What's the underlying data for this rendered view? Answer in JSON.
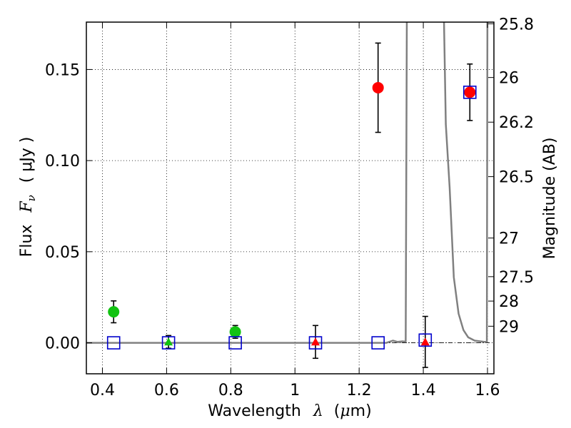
{
  "chart_data": {
    "type": "scatter",
    "xlabel": "Wavelength",
    "xlabel_symbol": "λ",
    "xlabel_unit_open": "(",
    "xlabel_unit_mu": "μ",
    "xlabel_unit_rest": "m)",
    "ylabel": "Flux",
    "ylabel_symbol": "F",
    "ylabel_symbol_sub": "ν",
    "ylabel_unit": "( μJy )",
    "y2label": "Magnitude (AB)",
    "xlim": [
      0.35,
      1.62
    ],
    "ylim": [
      -0.017,
      0.176
    ],
    "grid": true,
    "x_ticks": [
      {
        "value": 0.4,
        "label": "0.4"
      },
      {
        "value": 0.6,
        "label": "0.6"
      },
      {
        "value": 0.8,
        "label": "0.8"
      },
      {
        "value": 1.0,
        "label": "1"
      },
      {
        "value": 1.2,
        "label": "1.2"
      },
      {
        "value": 1.4,
        "label": "1.4"
      },
      {
        "value": 1.6,
        "label": "1.6"
      }
    ],
    "y_ticks": [
      {
        "value": 0.0,
        "label": "0.00"
      },
      {
        "value": 0.05,
        "label": "0.05"
      },
      {
        "value": 0.1,
        "label": "0.10"
      },
      {
        "value": 0.15,
        "label": "0.15"
      }
    ],
    "y2_ticks": [
      {
        "flux": 0.1751,
        "label": "25.8"
      },
      {
        "flux": 0.1456,
        "label": "26"
      },
      {
        "flux": 0.1211,
        "label": "26.2"
      },
      {
        "flux": 0.0912,
        "label": "26.5"
      },
      {
        "flux": 0.0575,
        "label": "27"
      },
      {
        "flux": 0.0363,
        "label": "27.5"
      },
      {
        "flux": 0.0229,
        "label": "28"
      },
      {
        "flux": 0.0091,
        "label": "29"
      }
    ],
    "series": [
      {
        "name": "green circles",
        "marker": "circle",
        "color": "#11c211",
        "points": [
          {
            "x": 0.435,
            "y": 0.017,
            "err": 0.006
          },
          {
            "x": 0.814,
            "y": 0.006,
            "err": 0.0035
          }
        ]
      },
      {
        "name": "green triangles",
        "marker": "triangle",
        "color": "#11c211",
        "points": [
          {
            "x": 0.606,
            "y": 0.0005,
            "err": 0.0035
          }
        ]
      },
      {
        "name": "red circles",
        "marker": "circle",
        "color": "#ff0000",
        "points": [
          {
            "x": 1.259,
            "y": 0.14,
            "err": 0.0245
          },
          {
            "x": 1.545,
            "y": 0.1375,
            "err": 0.0155
          }
        ]
      },
      {
        "name": "red triangles",
        "marker": "triangle",
        "color": "#ff0000",
        "points": [
          {
            "x": 1.064,
            "y": 0.0005,
            "err": 0.009
          },
          {
            "x": 1.406,
            "y": 0.0005,
            "err": 0.014
          }
        ]
      },
      {
        "name": "model photometry",
        "marker": "square",
        "color": "#0000cc",
        "points": [
          {
            "x": 0.435,
            "y": 0.0
          },
          {
            "x": 0.606,
            "y": 0.0
          },
          {
            "x": 0.814,
            "y": 0.0
          },
          {
            "x": 1.064,
            "y": 0.0
          },
          {
            "x": 1.259,
            "y": 0.0
          },
          {
            "x": 1.406,
            "y": 0.0015
          },
          {
            "x": 1.545,
            "y": 0.1375
          }
        ]
      }
    ],
    "model_curve": {
      "name": "model spectrum",
      "color": "#808080",
      "points": [
        [
          0.35,
          0.0
        ],
        [
          1.285,
          0.0
        ],
        [
          1.305,
          0.0012
        ],
        [
          1.32,
          0.0005
        ],
        [
          1.335,
          0.0008
        ],
        [
          1.345,
          0.0006
        ],
        [
          1.349,
          0.2
        ],
        [
          1.462,
          0.2
        ],
        [
          1.47,
          0.12
        ],
        [
          1.482,
          0.085
        ],
        [
          1.495,
          0.036
        ],
        [
          1.51,
          0.016
        ],
        [
          1.525,
          0.007
        ],
        [
          1.54,
          0.003
        ],
        [
          1.56,
          0.0012
        ],
        [
          1.59,
          0.0005
        ],
        [
          1.598,
          0.0005
        ],
        [
          1.6,
          0.2
        ],
        [
          1.62,
          0.2
        ]
      ]
    }
  }
}
